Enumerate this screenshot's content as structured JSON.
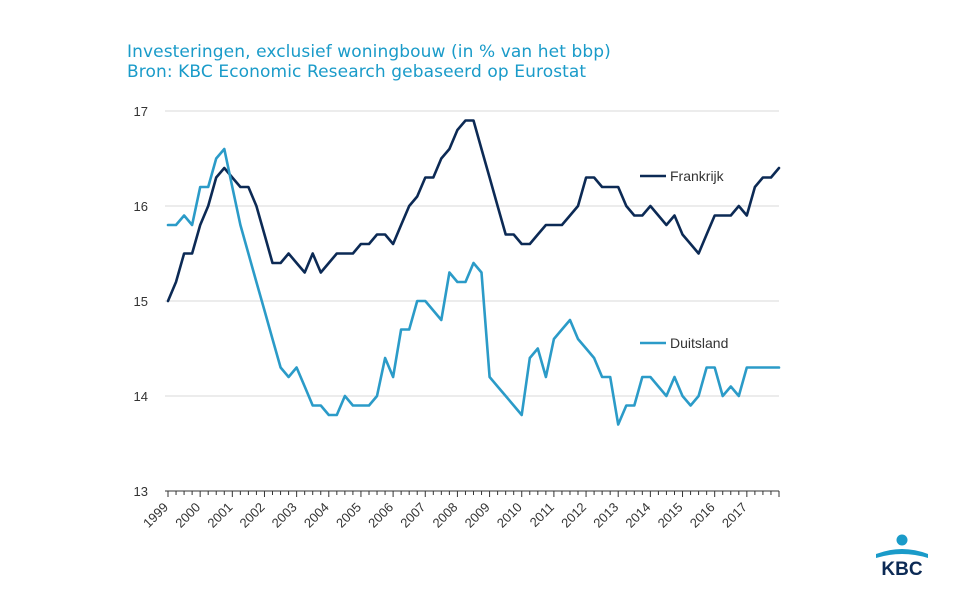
{
  "header": {
    "title": "Investeringen, exclusief woningbouw (in % van het bbp)",
    "subtitle": "Bron: KBC Economic Research gebaseerd op Eurostat"
  },
  "logo": {
    "text": "KBC",
    "color": "#0c2a55",
    "accent": "#1a9bc9"
  },
  "chart_data": {
    "type": "line",
    "title": "Investeringen, exclusief woningbouw (in % van het bbp)",
    "xlabel": "",
    "ylabel": "",
    "ylim": [
      13,
      17
    ],
    "yticks": [
      "13",
      "14",
      "15",
      "16",
      "17"
    ],
    "grid": true,
    "xticks": [
      "1999",
      "2000",
      "2001",
      "2002",
      "2003",
      "2004",
      "2005",
      "2006",
      "2007",
      "2008",
      "2009",
      "2010",
      "2011",
      "2012",
      "2013",
      "2014",
      "2015",
      "2016",
      "2017"
    ],
    "x_start": "1999-Q1",
    "frequency": "quarterly",
    "legend": "inline labels at right",
    "series": [
      {
        "name": "Frankrijk",
        "color": "#0c2a55",
        "values": [
          15.0,
          15.2,
          15.5,
          15.5,
          15.8,
          16.0,
          16.3,
          16.4,
          16.3,
          16.2,
          16.2,
          16.0,
          15.7,
          15.4,
          15.4,
          15.5,
          15.4,
          15.3,
          15.5,
          15.3,
          15.4,
          15.5,
          15.5,
          15.5,
          15.6,
          15.6,
          15.7,
          15.7,
          15.6,
          15.8,
          16.0,
          16.1,
          16.3,
          16.3,
          16.5,
          16.6,
          16.8,
          16.9,
          16.9,
          16.6,
          16.3,
          16.0,
          15.7,
          15.7,
          15.6,
          15.6,
          15.7,
          15.8,
          15.8,
          15.8,
          15.9,
          16.0,
          16.3,
          16.3,
          16.2,
          16.2,
          16.2,
          16.0,
          15.9,
          15.9,
          16.0,
          15.9,
          15.8,
          15.9,
          15.7,
          15.6,
          15.5,
          15.7,
          15.9,
          15.9,
          15.9,
          16.0,
          15.9,
          16.2,
          16.3,
          16.3,
          16.4
        ]
      },
      {
        "name": "Duitsland",
        "color": "#2b9bc8",
        "values": [
          15.8,
          15.8,
          15.9,
          15.8,
          16.2,
          16.2,
          16.5,
          16.6,
          16.2,
          15.8,
          15.5,
          15.2,
          14.9,
          14.6,
          14.3,
          14.2,
          14.3,
          14.1,
          13.9,
          13.9,
          13.8,
          13.8,
          14.0,
          13.9,
          13.9,
          13.9,
          14.0,
          14.4,
          14.2,
          14.7,
          14.7,
          15.0,
          15.0,
          14.9,
          14.8,
          15.3,
          15.2,
          15.2,
          15.4,
          15.3,
          14.2,
          14.1,
          14.0,
          13.9,
          13.8,
          14.4,
          14.5,
          14.2,
          14.6,
          14.7,
          14.8,
          14.6,
          14.5,
          14.4,
          14.2,
          14.2,
          13.7,
          13.9,
          13.9,
          14.2,
          14.2,
          14.1,
          14.0,
          14.2,
          14.0,
          13.9,
          14.0,
          14.3,
          14.3,
          14.0,
          14.1,
          14.0,
          14.3,
          14.3,
          14.3,
          14.3,
          14.3
        ]
      }
    ]
  }
}
